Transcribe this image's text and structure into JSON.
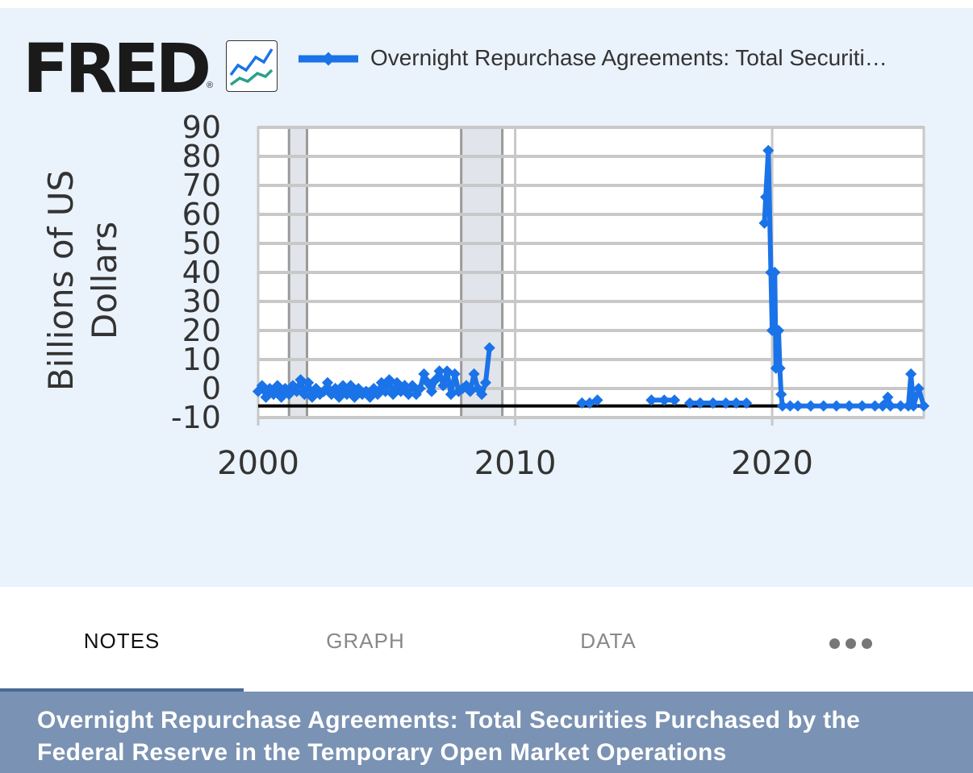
{
  "logo": {
    "text": "FRED",
    "reg": "®"
  },
  "legend": {
    "label": "Overnight Repurchase Agreements: Total Securiti…"
  },
  "tabs": [
    {
      "label": "NOTES",
      "active": true
    },
    {
      "label": "GRAPH",
      "active": false
    },
    {
      "label": "DATA",
      "active": false
    }
  ],
  "more_icon": "more-horizontal-icon",
  "title": "Overnight Repurchase Agreements: Total Securities Purchased by the Federal Reserve in the Temporary Open Market Operations",
  "colors": {
    "series": "#1a73e8",
    "panel_bg": "#eaf2fb",
    "title_bar": "#7a92b3",
    "recession": "#e1e4ea"
  },
  "chart_data": {
    "type": "line",
    "ylabel": "Billions of US Dollars",
    "ylim": [
      -10,
      90
    ],
    "yticks": [
      90,
      80,
      70,
      60,
      50,
      40,
      30,
      20,
      10,
      0,
      -10
    ],
    "xlim": [
      2000,
      2025.9
    ],
    "xticks": [
      2000,
      2010,
      2020
    ],
    "zero_line": -6,
    "recessions": [
      [
        2001.2,
        2001.9
      ],
      [
        2007.9,
        2009.5
      ]
    ],
    "series": [
      {
        "name": "Overnight Repurchase Agreements: Total Securities Purchased by the Federal Reserve in the Temporary Open Market Operations",
        "segments": [
          [
            [
              2000.0,
              -1
            ],
            [
              2000.15,
              1
            ],
            [
              2000.3,
              -3
            ],
            [
              2000.45,
              0
            ],
            [
              2000.6,
              -2
            ],
            [
              2000.75,
              1
            ],
            [
              2000.9,
              -3
            ],
            [
              2001.05,
              0
            ],
            [
              2001.2,
              -2
            ],
            [
              2001.35,
              1
            ],
            [
              2001.5,
              -1
            ],
            [
              2001.65,
              3
            ],
            [
              2001.8,
              -2
            ],
            [
              2001.95,
              2
            ],
            [
              2002.1,
              -3
            ],
            [
              2002.25,
              0
            ],
            [
              2002.4,
              -2
            ],
            [
              2002.55,
              -1
            ],
            [
              2002.7,
              2
            ],
            [
              2002.85,
              -2
            ],
            [
              2003.0,
              0
            ],
            [
              2003.15,
              -3
            ],
            [
              2003.3,
              1
            ],
            [
              2003.45,
              -2
            ],
            [
              2003.6,
              1
            ],
            [
              2003.75,
              -3
            ],
            [
              2003.9,
              0
            ],
            [
              2004.05,
              -2
            ],
            [
              2004.2,
              -1
            ],
            [
              2004.35,
              -3
            ],
            [
              2004.5,
              0
            ],
            [
              2004.65,
              -2
            ],
            [
              2004.8,
              2
            ],
            [
              2004.95,
              -1
            ],
            [
              2005.1,
              3
            ],
            [
              2005.25,
              -2
            ],
            [
              2005.4,
              2
            ],
            [
              2005.55,
              -1
            ],
            [
              2005.7,
              1
            ],
            [
              2005.85,
              -2
            ],
            [
              2006.0,
              1
            ],
            [
              2006.15,
              -2
            ],
            [
              2006.3,
              0
            ],
            [
              2006.45,
              5
            ],
            [
              2006.6,
              2
            ],
            [
              2006.75,
              -1
            ],
            [
              2006.9,
              3
            ],
            [
              2007.05,
              6
            ],
            [
              2007.2,
              1
            ],
            [
              2007.35,
              6
            ],
            [
              2007.5,
              -2
            ],
            [
              2007.65,
              5
            ],
            [
              2007.8,
              -1
            ],
            [
              2007.95,
              0
            ],
            [
              2008.1,
              1
            ],
            [
              2008.25,
              -1
            ],
            [
              2008.4,
              5
            ],
            [
              2008.55,
              0
            ],
            [
              2008.7,
              -2
            ],
            [
              2008.85,
              2
            ],
            [
              2009.0,
              14
            ]
          ],
          [
            [
              2012.6,
              -5
            ],
            [
              2012.9,
              -5
            ],
            [
              2013.2,
              -4
            ]
          ],
          [
            [
              2015.3,
              -4
            ],
            [
              2015.8,
              -4
            ],
            [
              2016.2,
              -4
            ]
          ],
          [
            [
              2016.8,
              -5
            ],
            [
              2017.2,
              -5
            ],
            [
              2017.7,
              -5
            ],
            [
              2018.2,
              -5
            ],
            [
              2018.6,
              -5
            ],
            [
              2019.0,
              -5
            ]
          ],
          [
            [
              2019.7,
              57
            ],
            [
              2019.75,
              66
            ],
            [
              2019.85,
              82
            ],
            [
              2019.95,
              40
            ],
            [
              2020.0,
              20
            ],
            [
              2020.1,
              40
            ],
            [
              2020.15,
              7
            ],
            [
              2020.25,
              20
            ],
            [
              2020.3,
              7
            ],
            [
              2020.35,
              -2
            ],
            [
              2020.4,
              -6
            ],
            [
              2020.7,
              -6
            ],
            [
              2021.0,
              -6
            ],
            [
              2021.5,
              -6
            ],
            [
              2022.0,
              -6
            ],
            [
              2022.5,
              -6
            ],
            [
              2023.0,
              -6
            ],
            [
              2023.5,
              -6
            ],
            [
              2024.0,
              -6
            ],
            [
              2024.3,
              -6
            ],
            [
              2024.5,
              -3
            ],
            [
              2024.6,
              -6
            ],
            [
              2025.0,
              -6
            ],
            [
              2025.3,
              -6
            ],
            [
              2025.4,
              5
            ],
            [
              2025.5,
              -6
            ],
            [
              2025.7,
              0
            ],
            [
              2025.9,
              -6
            ]
          ]
        ]
      }
    ]
  }
}
